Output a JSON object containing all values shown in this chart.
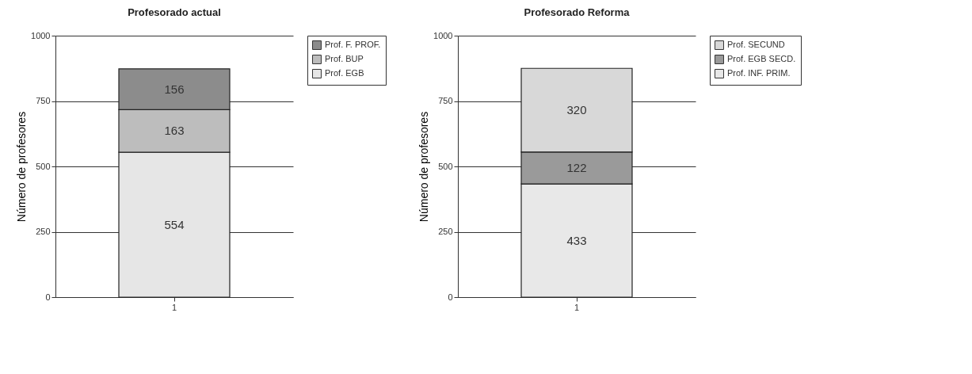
{
  "chart_data": [
    {
      "type": "bar",
      "title": "Profesorado actual",
      "ylabel": "Número de profesores",
      "categories": [
        "1"
      ],
      "stacked": true,
      "ylim": [
        0,
        1000
      ],
      "yticks": [
        0,
        250,
        500,
        750,
        1000
      ],
      "grid": "y",
      "legend": "top right",
      "data_labels": true,
      "series": [
        {
          "name": "Prof. EGB",
          "color": "#e6e6e6",
          "values": [
            554
          ]
        },
        {
          "name": "Prof. BUP",
          "color": "#bdbdbd",
          "values": [
            163
          ]
        },
        {
          "name": "Prof. F. PROF.",
          "color": "#8c8c8c",
          "values": [
            156
          ]
        }
      ]
    },
    {
      "type": "bar",
      "title": "Profesorado Reforma",
      "ylabel": "Número de profesores",
      "categories": [
        "1"
      ],
      "stacked": true,
      "ylim": [
        0,
        1000
      ],
      "yticks": [
        0,
        250,
        500,
        750,
        1000
      ],
      "grid": "y",
      "legend": "top right",
      "data_labels": true,
      "series": [
        {
          "name": "Prof. INF. PRIM.",
          "color": "#e8e8e8",
          "values": [
            433
          ]
        },
        {
          "name": "Prof. EGB SECD.",
          "color": "#9a9a9a",
          "values": [
            122
          ]
        },
        {
          "name": "Prof. SECUND",
          "color": "#d8d8d8",
          "values": [
            320
          ]
        }
      ]
    }
  ]
}
